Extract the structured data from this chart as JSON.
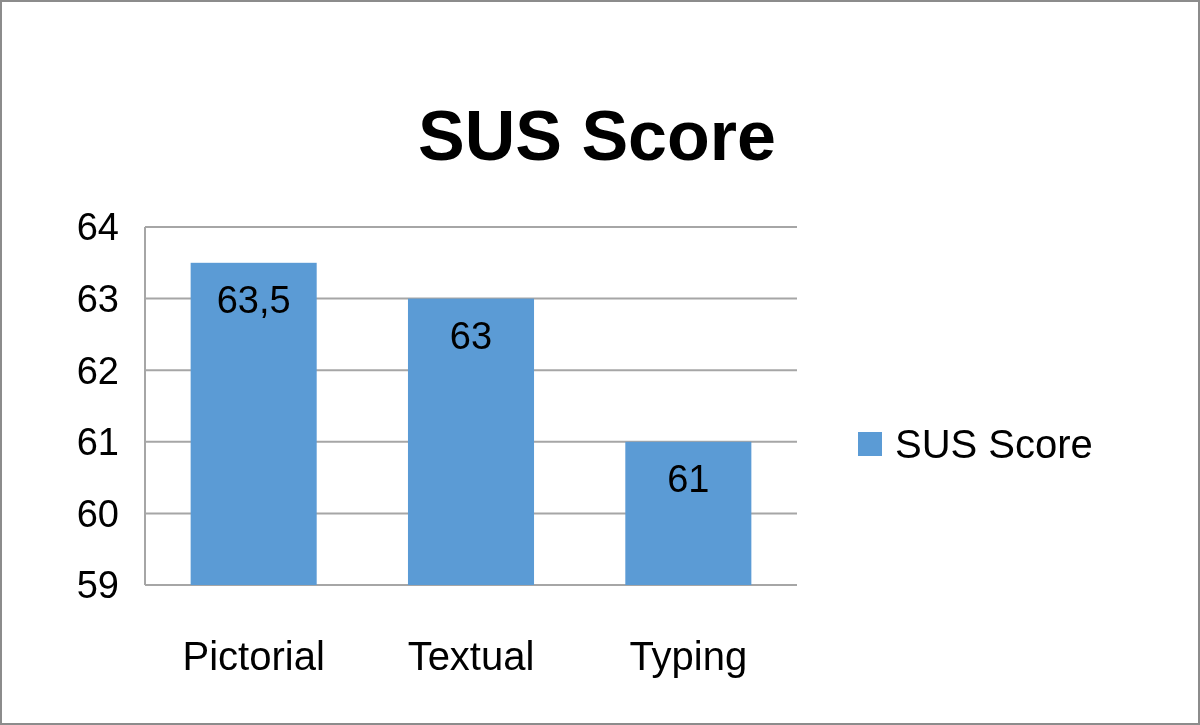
{
  "chart_data": {
    "type": "bar",
    "title": "SUS Score",
    "categories": [
      "Pictorial",
      "Textual",
      "Typing"
    ],
    "series": [
      {
        "name": "SUS Score",
        "color": "#5b9bd5",
        "values": [
          63.5,
          63,
          61
        ],
        "value_labels": [
          "63,5",
          "63",
          "61"
        ]
      }
    ],
    "ylim": [
      59,
      64
    ],
    "yticks": [
      59,
      60,
      61,
      62,
      63,
      64
    ],
    "grid": "y",
    "legend": "right"
  }
}
